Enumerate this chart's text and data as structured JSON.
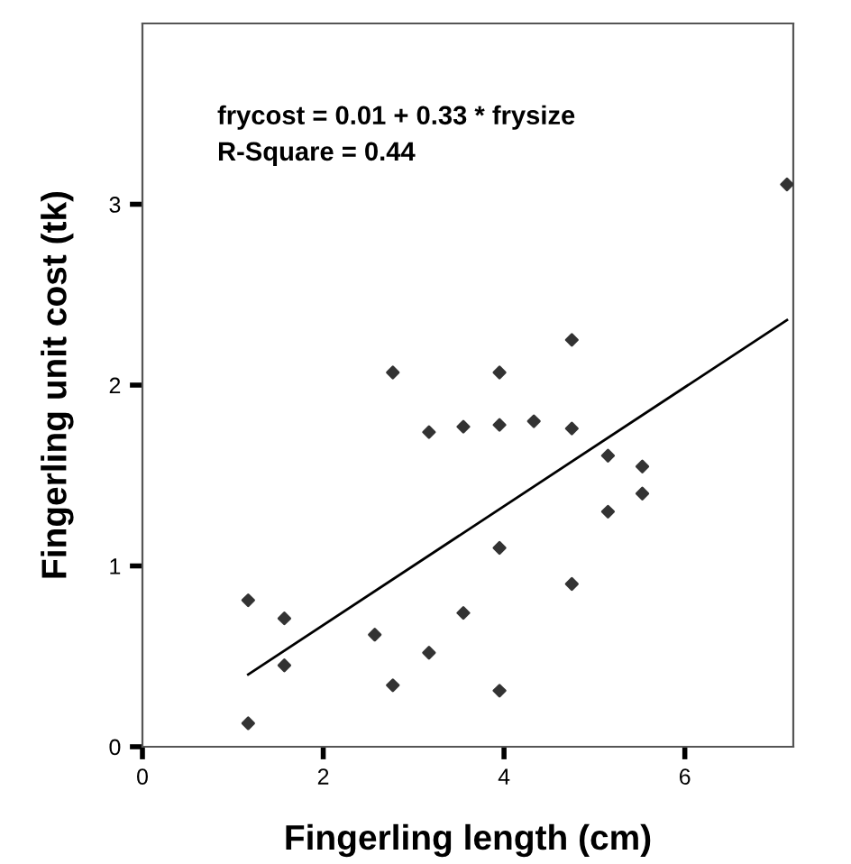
{
  "chart_data": {
    "type": "scatter",
    "xlabel": "Fingerling length (cm)",
    "ylabel": "Fingerling unit cost (tk)",
    "annotations": [
      "frycost = 0.01 + 0.33 * frysize",
      "R-Square = 0.44"
    ],
    "series": [
      {
        "color": "#333333",
        "marker": "diamond",
        "x": [
          1.17,
          1.17,
          1.57,
          1.57,
          2.57,
          2.77,
          2.77,
          3.17,
          3.17,
          3.55,
          3.55,
          3.95,
          3.95,
          3.95,
          3.95,
          4.33,
          4.75,
          4.75,
          4.75,
          5.15,
          5.15,
          5.53,
          5.53,
          7.13
        ],
        "values": [
          0.81,
          0.13,
          0.71,
          0.45,
          0.62,
          2.07,
          0.34,
          1.74,
          0.52,
          1.77,
          0.74,
          2.07,
          1.78,
          1.1,
          0.31,
          1.8,
          2.25,
          1.76,
          0.9,
          1.61,
          1.3,
          1.55,
          1.4,
          3.11
        ]
      },
      {
        "type": "line",
        "color": "#000000",
        "line_style": "solid",
        "x": [
          1.17,
          7.13
        ],
        "values": [
          0.4,
          2.36
        ]
      }
    ],
    "xlim": [
      0,
      7.2
    ],
    "ylim": [
      0,
      4
    ],
    "xticks": [
      0,
      2,
      4,
      6
    ],
    "yticks": [
      0,
      1,
      2,
      3
    ],
    "grid": false,
    "legend": false
  }
}
